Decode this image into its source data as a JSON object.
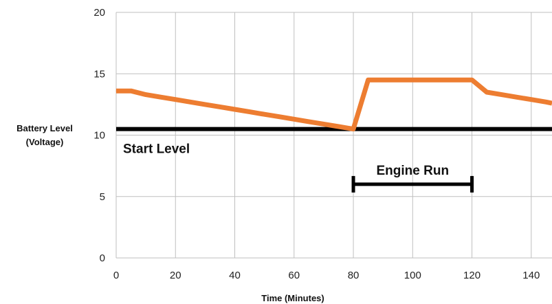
{
  "chart_data": {
    "type": "line",
    "title": "",
    "xlabel": "Time (Minutes)",
    "ylabel_lines": [
      "Battery Level",
      "(Voltage)"
    ],
    "xlim": [
      0,
      147
    ],
    "ylim": [
      0,
      20
    ],
    "x_ticks": [
      0,
      20,
      40,
      60,
      80,
      100,
      120,
      140
    ],
    "y_ticks": [
      0,
      5,
      10,
      15,
      20
    ],
    "grid": true,
    "series": [
      {
        "color": "#ed7d31",
        "x": [
          0,
          5,
          10,
          15,
          20,
          25,
          30,
          35,
          40,
          45,
          50,
          55,
          60,
          65,
          70,
          75,
          80,
          85,
          90,
          95,
          100,
          105,
          110,
          115,
          120,
          125,
          130,
          135,
          140,
          145,
          147
        ],
        "y": [
          13.6,
          13.6,
          13.3,
          13.1,
          12.9,
          12.7,
          12.5,
          12.3,
          12.1,
          11.9,
          11.7,
          11.5,
          11.3,
          11.1,
          10.9,
          10.7,
          10.5,
          14.5,
          14.5,
          14.5,
          14.5,
          14.5,
          14.5,
          14.5,
          14.5,
          13.5,
          13.3,
          13.1,
          12.9,
          12.7,
          12.6
        ]
      }
    ],
    "reference_line": {
      "y": 10.5,
      "color": "#000000",
      "label": "Start Level"
    },
    "engine_run": {
      "x_start": 80,
      "x_end": 120,
      "y": 6,
      "label": "Engine Run"
    }
  }
}
